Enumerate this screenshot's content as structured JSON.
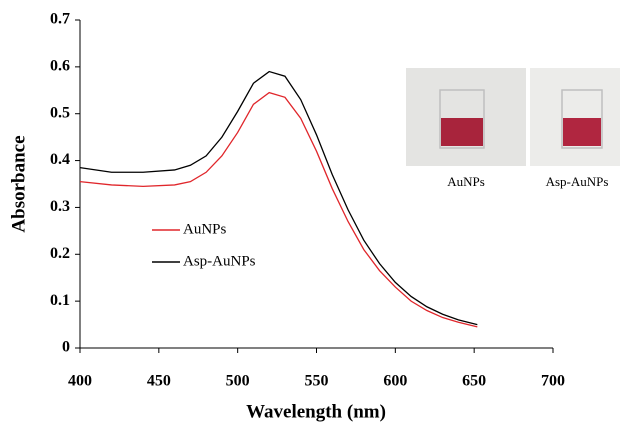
{
  "chart_data": {
    "type": "line",
    "xlabel": "Wavelength (nm)",
    "ylabel": "Absorbance",
    "annotations": [
      "AuNPs",
      "Asp-AuNPs"
    ],
    "x": [
      400,
      420,
      440,
      460,
      470,
      480,
      490,
      500,
      510,
      520,
      530,
      540,
      550,
      560,
      570,
      580,
      590,
      600,
      610,
      620,
      630,
      640,
      652
    ],
    "series": [
      {
        "name": "AuNPs",
        "color": "#e0262b",
        "values": [
          0.355,
          0.348,
          0.345,
          0.348,
          0.355,
          0.375,
          0.41,
          0.46,
          0.52,
          0.545,
          0.535,
          0.49,
          0.42,
          0.34,
          0.27,
          0.21,
          0.165,
          0.13,
          0.1,
          0.08,
          0.065,
          0.055,
          0.045
        ]
      },
      {
        "name": "Asp-AuNPs",
        "color": "#000000",
        "values": [
          0.385,
          0.375,
          0.375,
          0.38,
          0.39,
          0.41,
          0.45,
          0.505,
          0.565,
          0.59,
          0.58,
          0.53,
          0.455,
          0.37,
          0.295,
          0.23,
          0.18,
          0.14,
          0.11,
          0.088,
          0.072,
          0.06,
          0.05
        ]
      }
    ],
    "xlim": [
      400,
      700
    ],
    "xticks": [
      400,
      450,
      500,
      550,
      600,
      650,
      700
    ],
    "ylim": [
      0,
      0.7
    ],
    "yticks": [
      0,
      0.1,
      0.2,
      0.3,
      0.4,
      0.5,
      0.6,
      0.7
    ],
    "grid": false,
    "legend": "center left"
  }
}
